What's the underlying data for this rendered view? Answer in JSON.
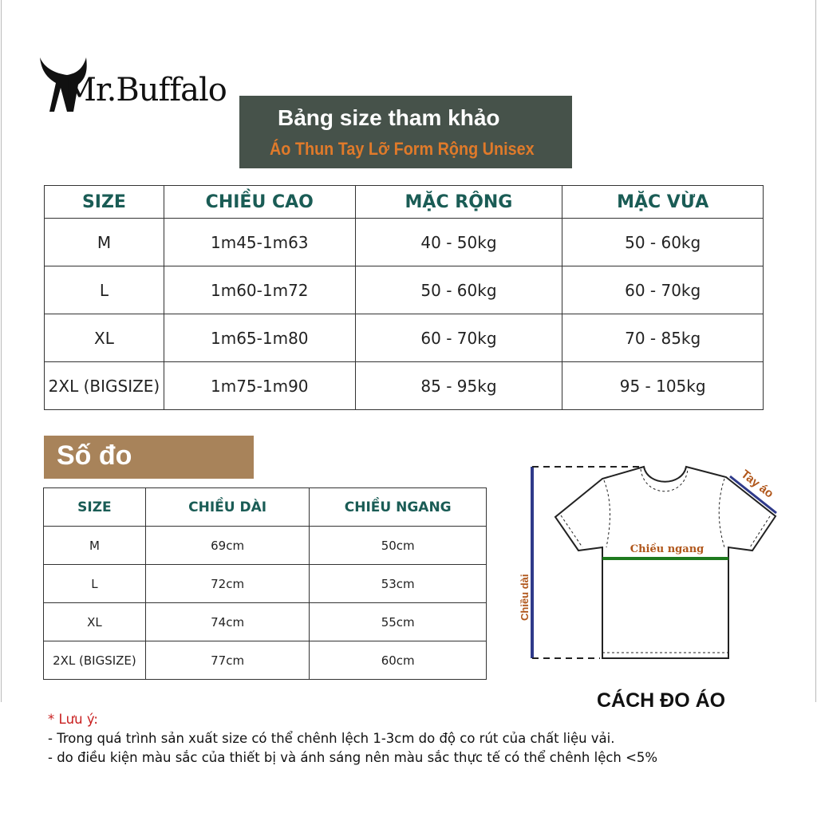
{
  "brand": {
    "name": "Mr.Buffalo"
  },
  "banner": {
    "title": "Bảng size tham khảo",
    "subtitle": "Áo Thun Tay Lỡ Form Rộng Unisex"
  },
  "size_table": {
    "headers": [
      "SIZE",
      "CHIỀU CAO",
      "MẶC RỘNG",
      "MẶC VỪA"
    ],
    "rows": [
      [
        "M",
        "1m45-1m63",
        "40 - 50kg",
        "50 - 60kg"
      ],
      [
        "L",
        "1m60-1m72",
        "50 - 60kg",
        "60 - 70kg"
      ],
      [
        "XL",
        "1m65-1m80",
        "60 - 70kg",
        "70 - 85kg"
      ],
      [
        "2XL (BIGSIZE)",
        "1m75-1m90",
        "85 - 95kg",
        "95 - 105kg"
      ]
    ]
  },
  "measure": {
    "title": "Số đo",
    "headers": [
      "SIZE",
      "CHIỀU DÀI",
      "CHIỀU NGANG"
    ],
    "rows": [
      [
        "M",
        "69cm",
        "50cm"
      ],
      [
        "L",
        "72cm",
        "53cm"
      ],
      [
        "XL",
        "74cm",
        "55cm"
      ],
      [
        "2XL (BIGSIZE)",
        "77cm",
        "60cm"
      ]
    ]
  },
  "diagram": {
    "sleeve_label": "Tay áo",
    "width_label": "Chiều ngang",
    "length_label": "Chiều dài",
    "caption": "CÁCH ĐO ÁO"
  },
  "notes": {
    "title": "* Lưu ý:",
    "lines": [
      "- Trong quá trình sản xuất size có thể chênh lệch 1-3cm do độ co rút của chất liệu vải.",
      "- do điều kiện màu sắc của thiết bị và ánh sáng nên màu sắc thực tế có thể chênh lệch <5%"
    ]
  },
  "colors": {
    "header_text": "#1a5c55",
    "banner_bg": "#46524a",
    "banner_sub": "#e07a2a",
    "sodo_bg": "#a8835a",
    "note_title": "#c81e1e",
    "measure_line_blue": "#2f3a8a",
    "measure_line_green": "#1e7a1e",
    "label_brown": "#b0561a"
  }
}
